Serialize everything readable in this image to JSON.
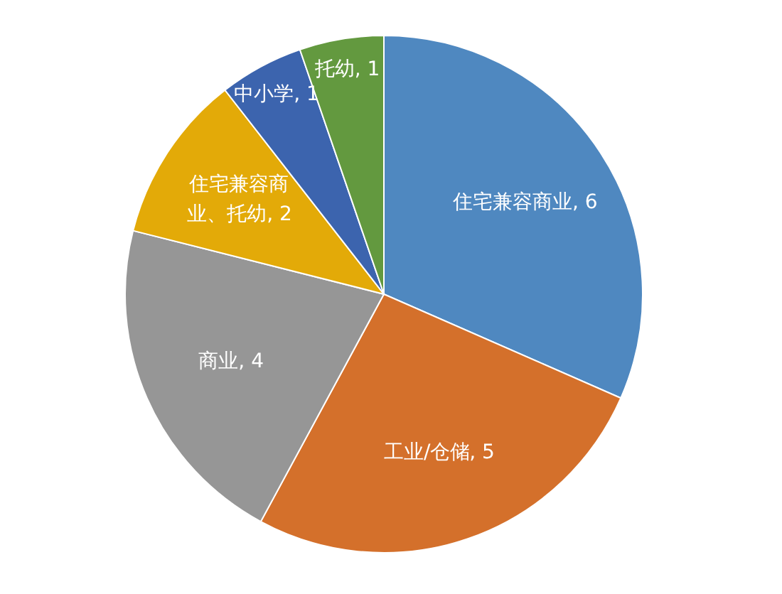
{
  "chart_data": {
    "type": "pie",
    "categories": [
      "住宅兼容商业",
      "工业/仓储",
      "商业",
      "住宅兼容商业、托幼",
      "中小学",
      "托幼"
    ],
    "values": [
      6,
      5,
      4,
      2,
      1,
      1
    ],
    "colors": [
      "#4f88c0",
      "#d4702b",
      "#969696",
      "#e3aa08",
      "#3c64ae",
      "#63993f"
    ],
    "value_labels": [
      ", 6",
      ", 5",
      ", 4",
      ", 2",
      ", 1",
      ", 1"
    ],
    "legend": false
  }
}
